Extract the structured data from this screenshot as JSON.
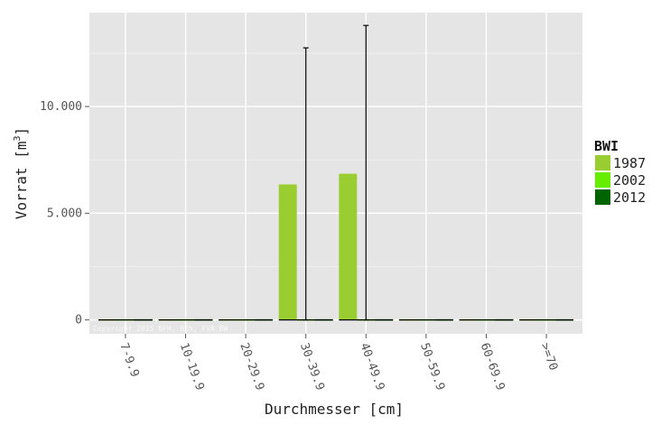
{
  "chart_data": {
    "type": "bar",
    "title": "",
    "xlabel": "Durchmesser [cm]",
    "ylabel": "Vorrat [m",
    "ylabel_superscript": "3",
    "ylabel_close": "]",
    "categories": [
      "7-9.9",
      "10-19.9",
      "20-29.9",
      "30-39.9",
      "40-49.9",
      "50-59.9",
      "60-69.9",
      ">=70"
    ],
    "series": [
      {
        "name": "1987",
        "color": "#9acd32",
        "values": [
          0,
          0,
          0,
          6350,
          6850,
          0,
          0,
          0
        ],
        "error_upper": [
          0,
          0,
          0,
          12750,
          13800,
          0,
          0,
          0
        ],
        "error_lower": [
          0,
          0,
          0,
          0,
          0,
          0,
          0,
          0
        ]
      },
      {
        "name": "2002",
        "color": "#66ee00",
        "values": [
          0,
          0,
          0,
          0,
          0,
          0,
          0,
          0
        ]
      },
      {
        "name": "2012",
        "color": "#006400",
        "values": [
          0,
          0,
          0,
          0,
          0,
          0,
          0,
          0
        ]
      }
    ],
    "ylim": [
      -650,
      14400
    ],
    "y_ticks": [
      0,
      5000,
      10000
    ],
    "y_tick_labels": [
      "0",
      "5.000",
      "10.000"
    ],
    "grid": true,
    "legend": {
      "title": "BWI",
      "position": "right"
    },
    "watermark": "Copyright 2015 BFH, Bzh, FVA BW"
  }
}
